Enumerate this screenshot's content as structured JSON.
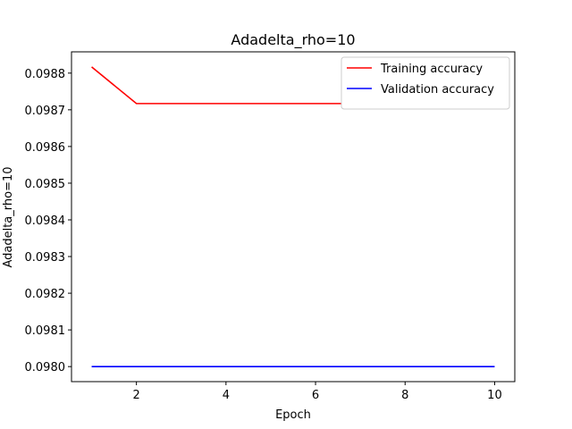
{
  "chart_data": {
    "type": "line",
    "title": "Adadelta_rho=10",
    "xlabel": "Epoch",
    "ylabel": "Adadelta_rho=10",
    "x": [
      1,
      2,
      3,
      4,
      5,
      6,
      7,
      8,
      9,
      10
    ],
    "series": [
      {
        "name": "Training accuracy",
        "color": "#ff0000",
        "values": [
          0.098817,
          0.098717,
          0.098717,
          0.098717,
          0.098717,
          0.098717,
          0.098717,
          0.098717,
          0.098717,
          0.098717
        ]
      },
      {
        "name": "Validation accuracy",
        "color": "#0000ff",
        "values": [
          0.098,
          0.098,
          0.098,
          0.098,
          0.098,
          0.098,
          0.098,
          0.098,
          0.098,
          0.098
        ]
      }
    ],
    "xlim": [
      0.55,
      10.45
    ],
    "ylim": [
      0.097959,
      0.098858
    ],
    "xticks": [
      2,
      4,
      6,
      8,
      10
    ],
    "yticks": [
      "0.0980",
      "0.0981",
      "0.0982",
      "0.0983",
      "0.0984",
      "0.0985",
      "0.0986",
      "0.0987",
      "0.0988"
    ],
    "grid": false,
    "legend": "top-right"
  }
}
